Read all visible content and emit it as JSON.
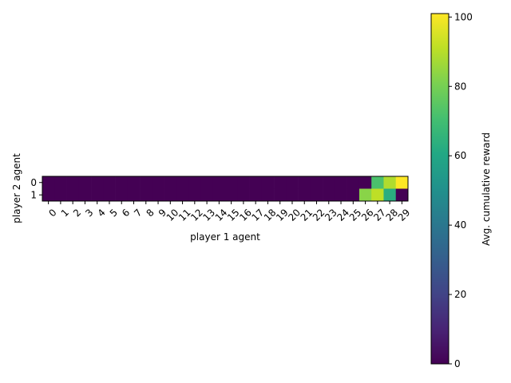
{
  "chart_data": {
    "type": "heatmap",
    "title": "",
    "xlabel": "player 1 agent",
    "ylabel": "player 2 agent",
    "x_categories": [
      "0",
      "1",
      "2",
      "3",
      "4",
      "5",
      "6",
      "7",
      "8",
      "9",
      "10",
      "11",
      "12",
      "13",
      "14",
      "15",
      "16",
      "17",
      "18",
      "19",
      "20",
      "21",
      "22",
      "23",
      "24",
      "25",
      "26",
      "27",
      "28",
      "29"
    ],
    "y_categories": [
      "0",
      "1"
    ],
    "values": [
      [
        0,
        0,
        0,
        0,
        0,
        0,
        0,
        0,
        0,
        0,
        0,
        0,
        0,
        0,
        0,
        0,
        0,
        0,
        0,
        0,
        0,
        0,
        0,
        0,
        0,
        0,
        0,
        72,
        89,
        101
      ],
      [
        0,
        0,
        0,
        0,
        0,
        0,
        0,
        0,
        0,
        0,
        0,
        0,
        0,
        0,
        0,
        0,
        0,
        0,
        0,
        0,
        0,
        0,
        0,
        0,
        0,
        0,
        83,
        91,
        63,
        0
      ]
    ],
    "colormap": "viridis",
    "colorbar": {
      "label": "Avg. cumulative reward",
      "range": [
        0,
        101
      ],
      "ticks": [
        "0",
        "20",
        "40",
        "60",
        "80",
        "100"
      ]
    }
  }
}
